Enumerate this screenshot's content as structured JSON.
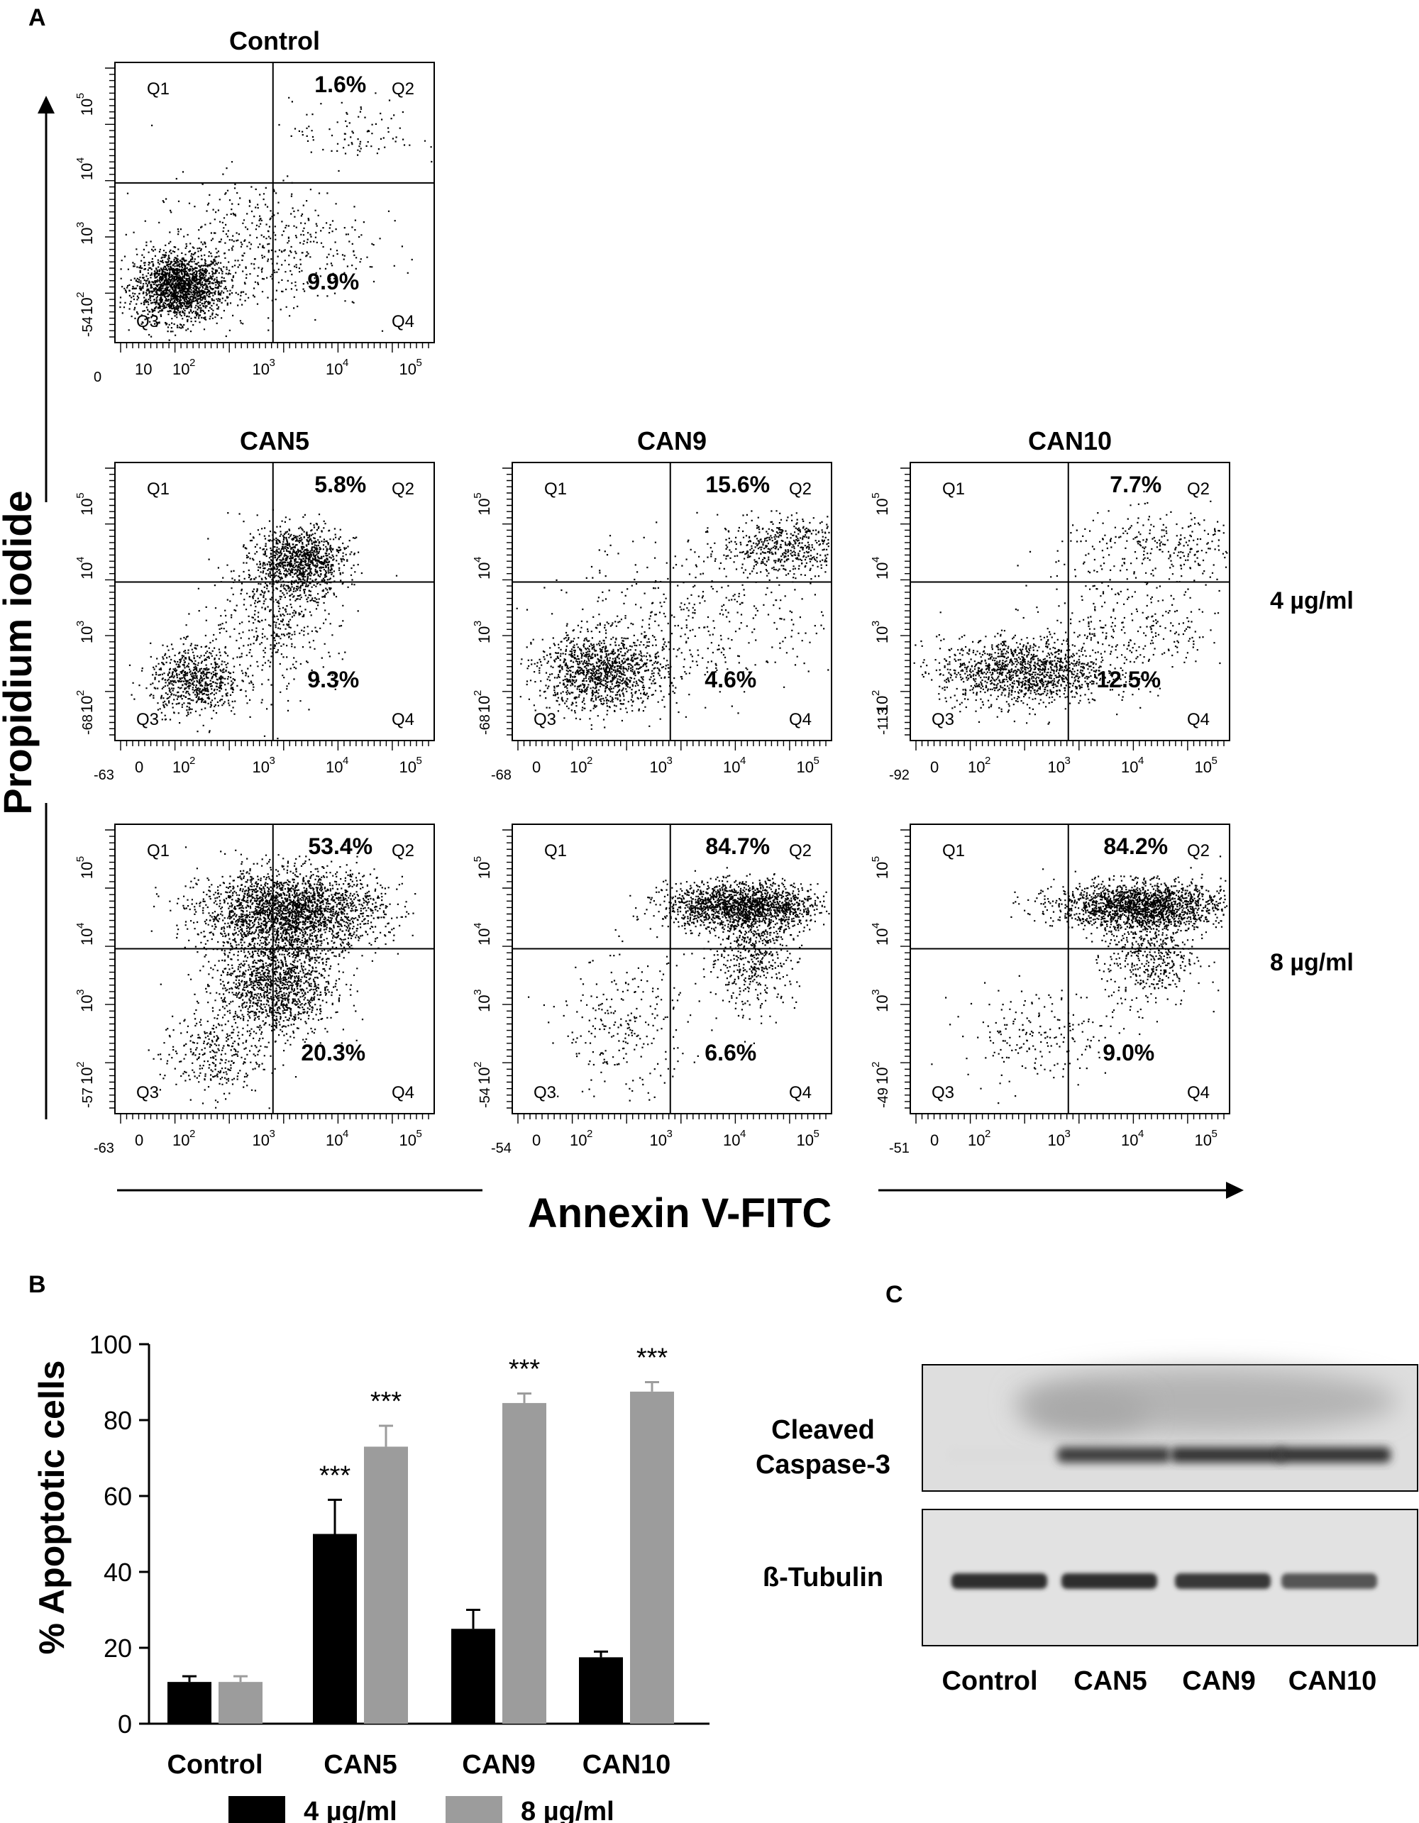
{
  "panel_a": {
    "label": "A",
    "y_axis_label": "Propidium iodide",
    "x_axis_label": "Annexin V-FITC",
    "row_labels": [
      "4 µg/ml",
      "8 µg/ml"
    ],
    "quadrant_names": [
      "Q1",
      "Q2",
      "Q3",
      "Q4"
    ],
    "plots": [
      {
        "title": "Control",
        "q2": "1.6%",
        "q4": "9.9%",
        "ymin": "-54",
        "xmin": "0",
        "xt0": "10"
      },
      {
        "title": "CAN5",
        "q2": "5.8%",
        "q4": "9.3%",
        "ymin": "-68",
        "xmin": "-63",
        "xt0": "0"
      },
      {
        "title": "CAN9",
        "q2": "15.6%",
        "q4": "4.6%",
        "ymin": "-68",
        "xmin": "-68",
        "xt0": "0"
      },
      {
        "title": "CAN10",
        "q2": "7.7%",
        "q4": "12.5%",
        "ymin": "-113",
        "xmin": "-92",
        "xt0": "0"
      },
      {
        "title": "",
        "q2": "53.4%",
        "q4": "20.3%",
        "ymin": "-57",
        "xmin": "-63",
        "xt0": "0"
      },
      {
        "title": "",
        "q2": "84.7%",
        "q4": "6.6%",
        "ymin": "-54",
        "xmin": "-54",
        "xt0": "0"
      },
      {
        "title": "",
        "q2": "84.2%",
        "q4": "9.0%",
        "ymin": "-49",
        "xmin": "-51",
        "xt0": "0"
      }
    ],
    "tick_labels": [
      "10",
      "2",
      "10",
      "3",
      "10",
      "4",
      "10",
      "5"
    ]
  },
  "chart_data": {
    "type": "bar",
    "label": "B",
    "categories": [
      "Control",
      "CAN5",
      "CAN9",
      "CAN10"
    ],
    "series": [
      {
        "name": "4 µg/ml",
        "color": "#000000",
        "values": [
          11,
          50,
          25,
          17.5
        ],
        "errors": [
          1.5,
          9,
          5,
          1.5
        ]
      },
      {
        "name": "8 µg/ml",
        "color": "#9c9c9c",
        "values": [
          11,
          73,
          84.5,
          87.5
        ],
        "errors": [
          1.5,
          5.5,
          2.5,
          2.5
        ]
      }
    ],
    "significance": [
      [
        "",
        "***",
        "",
        ""
      ],
      [
        "",
        "***",
        "***",
        "***"
      ]
    ],
    "ylabel": "% Apoptotic cells",
    "ylim": [
      0,
      100
    ],
    "yticks": [
      0,
      20,
      40,
      60,
      80,
      100
    ],
    "legend_position": "bottom"
  },
  "panel_c": {
    "label": "C",
    "bands": [
      "Cleaved",
      "Caspase-3",
      "ß-Tubulin"
    ],
    "lanes": [
      "Control",
      "CAN5",
      "CAN9",
      "CAN10"
    ],
    "caspase_intensity": [
      0.05,
      0.85,
      0.9,
      0.9
    ],
    "tubulin_intensity": [
      0.9,
      0.9,
      0.85,
      0.7
    ]
  }
}
